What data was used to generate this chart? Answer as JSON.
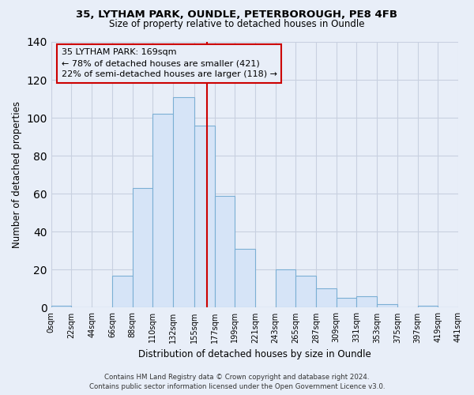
{
  "title_line1": "35, LYTHAM PARK, OUNDLE, PETERBOROUGH, PE8 4FB",
  "title_line2": "Size of property relative to detached houses in Oundle",
  "xlabel": "Distribution of detached houses by size in Oundle",
  "ylabel": "Number of detached properties",
  "bar_color": "#d6e4f7",
  "bar_edge_color": "#7bafd4",
  "bin_edges": [
    0,
    22,
    44,
    66,
    88,
    110,
    132,
    155,
    177,
    199,
    221,
    243,
    265,
    287,
    309,
    331,
    353,
    375,
    397,
    419,
    441
  ],
  "bar_heights": [
    1,
    0,
    0,
    17,
    63,
    102,
    111,
    96,
    59,
    31,
    0,
    20,
    17,
    10,
    5,
    6,
    2,
    0,
    1,
    0
  ],
  "tick_labels": [
    "0sqm",
    "22sqm",
    "44sqm",
    "66sqm",
    "88sqm",
    "110sqm",
    "132sqm",
    "155sqm",
    "177sqm",
    "199sqm",
    "221sqm",
    "243sqm",
    "265sqm",
    "287sqm",
    "309sqm",
    "331sqm",
    "353sqm",
    "375sqm",
    "397sqm",
    "419sqm",
    "441sqm"
  ],
  "ylim": [
    0,
    140
  ],
  "yticks": [
    0,
    20,
    40,
    60,
    80,
    100,
    120,
    140
  ],
  "property_size": 169,
  "annotation_title": "35 LYTHAM PARK: 169sqm",
  "annotation_line1": "← 78% of detached houses are smaller (421)",
  "annotation_line2": "22% of semi-detached houses are larger (118) →",
  "vline_color": "#cc0000",
  "annotation_box_edge": "#cc0000",
  "footer_line1": "Contains HM Land Registry data © Crown copyright and database right 2024.",
  "footer_line2": "Contains public sector information licensed under the Open Government Licence v3.0.",
  "background_color": "#e8eef8",
  "grid_color": "#c8d0e0"
}
